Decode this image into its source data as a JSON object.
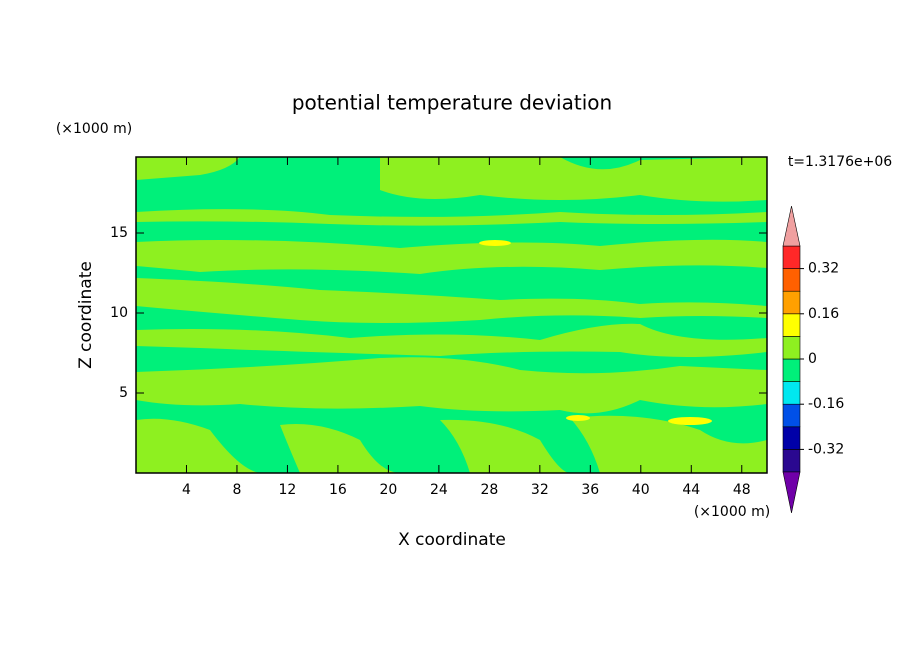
{
  "chart_data": {
    "type": "contour",
    "title": "potential temperature deviation",
    "x_label": "X coordinate",
    "y_label": "Z coordinate",
    "x_unit": "(×1000 m)",
    "y_unit": "(×1000 m)",
    "time_label": "t=1.3176e+06",
    "xlim": [
      0,
      50
    ],
    "xticks": [
      4,
      8,
      12,
      16,
      20,
      24,
      28,
      32,
      36,
      40,
      44,
      48
    ],
    "ylim": [
      0,
      19.75
    ],
    "yticks": [
      5,
      10,
      15
    ],
    "colorbar": {
      "levels": [
        -0.4,
        -0.32,
        -0.24,
        -0.16,
        -0.08,
        0,
        0.08,
        0.16,
        0.24,
        0.32,
        0.4
      ],
      "colors": [
        "#2a0890",
        "#0000a8",
        "#0050e8",
        "#00e8f0",
        "#00f07a",
        "#8ef020",
        "#ffff00",
        "#ffa000",
        "#ff6000",
        "#ff2828"
      ],
      "under_color": "#7000a8",
      "over_color": "#f0a0a0",
      "ticks": [
        -0.32,
        -0.16,
        0,
        0.16,
        0.32
      ]
    }
  }
}
